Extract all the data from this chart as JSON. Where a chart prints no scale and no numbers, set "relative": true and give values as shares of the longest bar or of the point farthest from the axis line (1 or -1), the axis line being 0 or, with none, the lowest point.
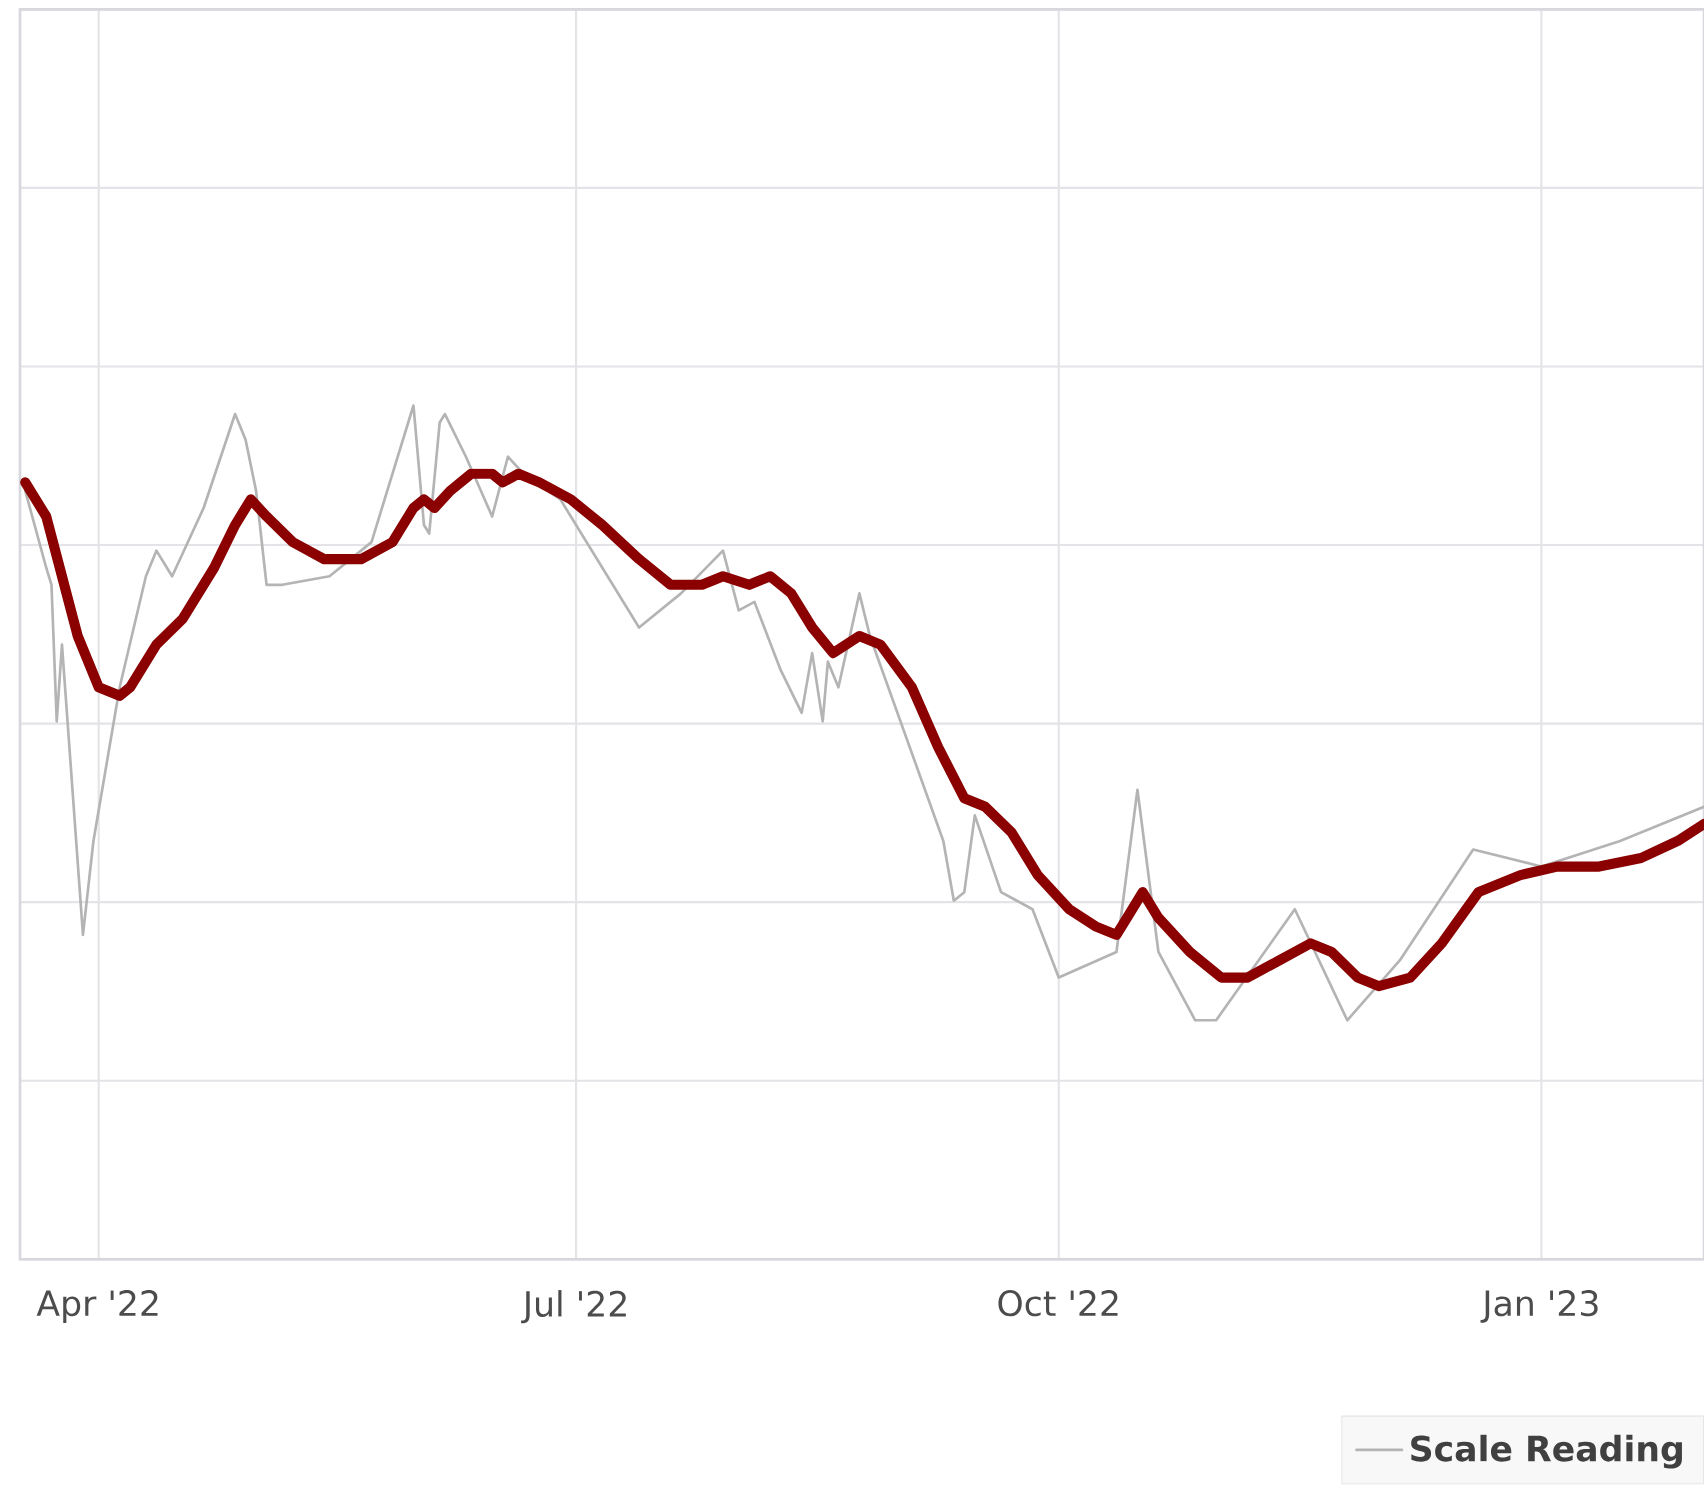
{
  "chart_data": {
    "type": "line",
    "relative": true,
    "grid": true,
    "legend": "bottom right",
    "marker": "none",
    "line_style": "solid",
    "xlim": [
      "2022-03-17",
      "2023-02-01"
    ],
    "xticks": [
      {
        "value": "2022-04-01",
        "label": "Apr '22"
      },
      {
        "value": "2022-07-01",
        "label": "Jul '22"
      },
      {
        "value": "2022-10-01",
        "label": "Oct '22"
      },
      {
        "value": "2023-01-01",
        "label": "Jan '23"
      }
    ],
    "series": [
      {
        "name": "Scale Reading",
        "color": "#b4b4b4",
        "x": [
          "2022-03-18",
          "2022-03-22",
          "2022-03-23",
          "2022-03-24",
          "2022-03-25",
          "2022-03-29",
          "2022-03-31",
          "2022-04-05",
          "2022-04-10",
          "2022-04-12",
          "2022-04-15",
          "2022-04-21",
          "2022-04-27",
          "2022-04-29",
          "2022-05-01",
          "2022-05-03",
          "2022-05-06",
          "2022-05-15",
          "2022-05-23",
          "2022-05-31",
          "2022-06-02",
          "2022-06-03",
          "2022-06-05",
          "2022-06-06",
          "2022-06-10",
          "2022-06-15",
          "2022-06-18",
          "2022-06-21",
          "2022-06-28",
          "2022-07-13",
          "2022-07-21",
          "2022-07-29",
          "2022-08-01",
          "2022-08-04",
          "2022-08-09",
          "2022-08-13",
          "2022-08-15",
          "2022-08-17",
          "2022-08-18",
          "2022-08-20",
          "2022-08-24",
          "2022-08-26",
          "2022-09-09",
          "2022-09-11",
          "2022-09-13",
          "2022-09-15",
          "2022-09-20",
          "2022-09-26",
          "2022-10-01",
          "2022-10-12",
          "2022-10-16",
          "2022-10-20",
          "2022-10-27",
          "2022-10-31",
          "2022-11-15",
          "2022-11-25",
          "2022-12-05",
          "2022-12-19",
          "2023-01-01",
          "2023-01-16",
          "2023-02-01"
        ],
        "values": [
          0.9,
          0.81,
          0.79,
          0.63,
          0.72,
          0.38,
          0.49,
          0.67,
          0.8,
          0.83,
          0.8,
          0.88,
          0.99,
          0.96,
          0.9,
          0.79,
          0.79,
          0.8,
          0.84,
          1.0,
          0.86,
          0.85,
          0.98,
          0.99,
          0.94,
          0.87,
          0.94,
          0.92,
          0.89,
          0.74,
          0.78,
          0.83,
          0.76,
          0.77,
          0.69,
          0.64,
          0.71,
          0.63,
          0.7,
          0.67,
          0.78,
          0.73,
          0.49,
          0.42,
          0.43,
          0.52,
          0.43,
          0.41,
          0.33,
          0.36,
          0.55,
          0.36,
          0.28,
          0.28,
          0.41,
          0.28,
          0.35,
          0.48,
          0.46,
          0.49,
          0.53
        ]
      },
      {
        "color": "#8b0000",
        "x": [
          "2022-03-18",
          "2022-03-22",
          "2022-03-25",
          "2022-03-28",
          "2022-04-01",
          "2022-04-05",
          "2022-04-07",
          "2022-04-12",
          "2022-04-17",
          "2022-04-23",
          "2022-04-27",
          "2022-04-30",
          "2022-05-03",
          "2022-05-08",
          "2022-05-14",
          "2022-05-21",
          "2022-05-27",
          "2022-05-31",
          "2022-06-02",
          "2022-06-04",
          "2022-06-07",
          "2022-06-11",
          "2022-06-15",
          "2022-06-17",
          "2022-06-20",
          "2022-06-24",
          "2022-06-30",
          "2022-07-06",
          "2022-07-13",
          "2022-07-19",
          "2022-07-25",
          "2022-07-29",
          "2022-08-03",
          "2022-08-07",
          "2022-08-11",
          "2022-08-15",
          "2022-08-19",
          "2022-08-24",
          "2022-08-28",
          "2022-09-03",
          "2022-09-08",
          "2022-09-13",
          "2022-09-17",
          "2022-09-22",
          "2022-09-27",
          "2022-10-03",
          "2022-10-08",
          "2022-10-12",
          "2022-10-14",
          "2022-10-17",
          "2022-10-20",
          "2022-10-26",
          "2022-11-01",
          "2022-11-06",
          "2022-11-12",
          "2022-11-18",
          "2022-11-22",
          "2022-11-27",
          "2022-12-01",
          "2022-12-07",
          "2022-12-13",
          "2022-12-20",
          "2022-12-28",
          "2023-01-04",
          "2023-01-12",
          "2023-01-20",
          "2023-01-27",
          "2023-02-01"
        ],
        "values": [
          0.91,
          0.87,
          0.8,
          0.73,
          0.67,
          0.66,
          0.67,
          0.72,
          0.75,
          0.81,
          0.86,
          0.89,
          0.87,
          0.84,
          0.82,
          0.82,
          0.84,
          0.88,
          0.89,
          0.88,
          0.9,
          0.92,
          0.92,
          0.91,
          0.92,
          0.91,
          0.89,
          0.86,
          0.82,
          0.79,
          0.79,
          0.8,
          0.79,
          0.8,
          0.78,
          0.74,
          0.71,
          0.73,
          0.72,
          0.67,
          0.6,
          0.54,
          0.53,
          0.5,
          0.45,
          0.41,
          0.39,
          0.38,
          0.4,
          0.43,
          0.4,
          0.36,
          0.33,
          0.33,
          0.35,
          0.37,
          0.36,
          0.33,
          0.32,
          0.33,
          0.37,
          0.43,
          0.45,
          0.46,
          0.46,
          0.47,
          0.49,
          0.51
        ]
      }
    ]
  }
}
